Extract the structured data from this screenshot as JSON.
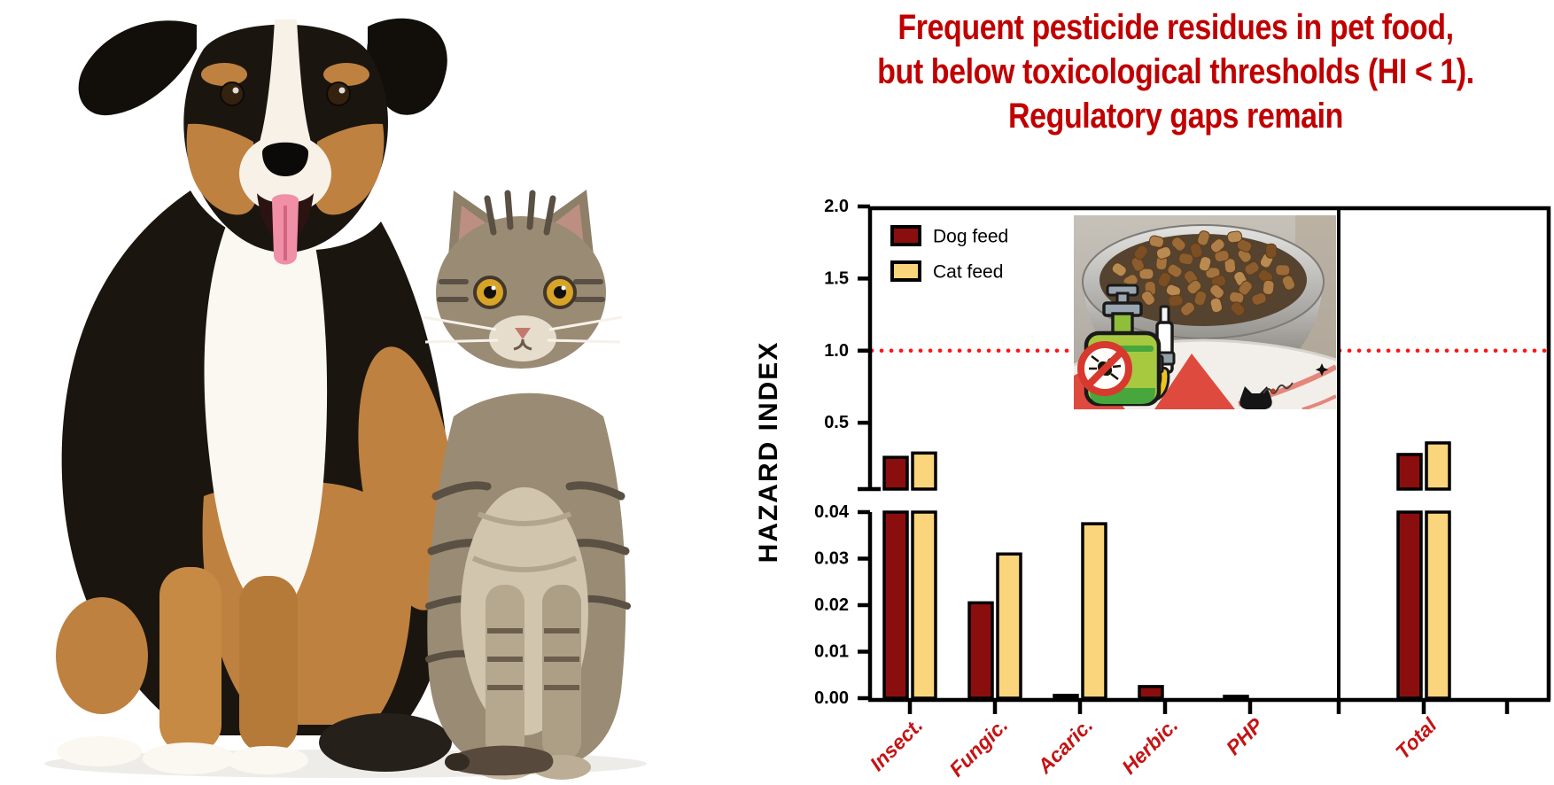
{
  "title": {
    "lines": [
      "Frequent pesticide residues in pet food,",
      "but below toxicological thresholds (HI < 1).",
      "Regulatory gaps remain"
    ],
    "color": "#C00000"
  },
  "photo": {
    "subjects": [
      "dog",
      "cat"
    ]
  },
  "inset": {
    "icon": "pet-food-bowl-photo-with-no-pesticide-sprayer-icon"
  },
  "chart_data": {
    "type": "bar",
    "title": "",
    "xlabel": "",
    "ylabel": "HAZARD INDEX",
    "categories": [
      "Insect.",
      "Fungic.",
      "Acaric.",
      "Herbic.",
      "PHP",
      "Total"
    ],
    "series": [
      {
        "name": "Dog feed",
        "color": "#8B0E0E",
        "values": [
          0.26,
          0.0205,
          0.0006,
          0.0025,
          0.0004,
          0.28
        ]
      },
      {
        "name": "Cat feed",
        "color": "#FAD57C",
        "values": [
          0.29,
          0.031,
          0.0375,
          0,
          0,
          0.36
        ]
      }
    ],
    "axis_break": {
      "lower_range": [
        0,
        0.04
      ],
      "upper_range": [
        0.04,
        2.0
      ]
    },
    "lower_ticks": [
      "0.00",
      "0.01",
      "0.02",
      "0.03",
      "0.04"
    ],
    "upper_ticks": [
      "0.5",
      "1.0",
      "1.5",
      "2.0"
    ],
    "threshold_line": {
      "value": 1.0,
      "color": "#FF1414",
      "style": "dotted"
    },
    "legend_position": "top-left",
    "grid": false,
    "separate_total_panel": true,
    "category_label_color": "#C41414",
    "bar_outline_color": "#000000"
  }
}
